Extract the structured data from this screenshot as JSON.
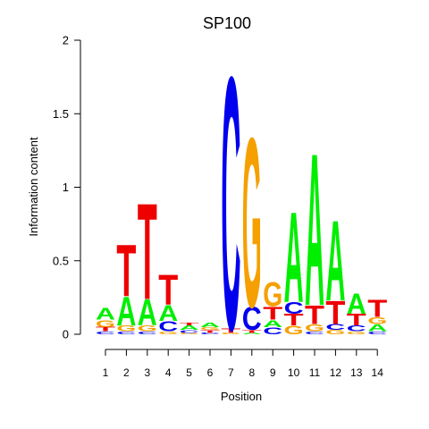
{
  "chart_data": {
    "type": "sequence-logo",
    "title": "SP100",
    "xlabel": "Position",
    "ylabel": "Information content",
    "ylim": [
      0,
      2
    ],
    "yticks": [
      "0",
      "0.5",
      "1",
      "1.5",
      "2"
    ],
    "ytick_values": [
      0,
      0.5,
      1,
      1.5,
      2
    ],
    "positions": [
      "1",
      "2",
      "3",
      "4",
      "5",
      "6",
      "7",
      "8",
      "9",
      "10",
      "11",
      "12",
      "13",
      "14"
    ],
    "colors": {
      "A": "#00ee00",
      "C": "#0000ee",
      "G": "#f5a000",
      "T": "#ee0000"
    },
    "columns": [
      [
        [
          "C",
          0.02
        ],
        [
          "T",
          0.03
        ],
        [
          "G",
          0.05
        ],
        [
          "A",
          0.08
        ]
      ],
      [
        [
          "C",
          0.02
        ],
        [
          "G",
          0.04
        ],
        [
          "A",
          0.2
        ],
        [
          "T",
          0.36
        ]
      ],
      [
        [
          "C",
          0.02
        ],
        [
          "G",
          0.04
        ],
        [
          "A",
          0.18
        ],
        [
          "T",
          0.67
        ]
      ],
      [
        [
          "G",
          0.02
        ],
        [
          "C",
          0.07
        ],
        [
          "A",
          0.11
        ],
        [
          "T",
          0.21
        ]
      ],
      [
        [
          "G",
          0.01
        ],
        [
          "C",
          0.02
        ],
        [
          "A",
          0.03
        ],
        [
          "T",
          0.02
        ]
      ],
      [
        [
          "C",
          0.01
        ],
        [
          "T",
          0.02
        ],
        [
          "G",
          0.02
        ],
        [
          "A",
          0.03
        ]
      ],
      [
        [
          "G",
          0.01
        ],
        [
          "T",
          0.03
        ],
        [
          "C",
          1.76
        ]
      ],
      [
        [
          "A",
          0.01
        ],
        [
          "T",
          0.02
        ],
        [
          "C",
          0.16
        ],
        [
          "G",
          1.18
        ]
      ],
      [
        [
          "C",
          0.05
        ],
        [
          "A",
          0.05
        ],
        [
          "T",
          0.09
        ],
        [
          "G",
          0.17
        ]
      ],
      [
        [
          "G",
          0.06
        ],
        [
          "T",
          0.08
        ],
        [
          "C",
          0.08
        ],
        [
          "A",
          0.63
        ]
      ],
      [
        [
          "C",
          0.02
        ],
        [
          "G",
          0.05
        ],
        [
          "T",
          0.13
        ],
        [
          "A",
          1.06
        ]
      ],
      [
        [
          "G",
          0.03
        ],
        [
          "C",
          0.04
        ],
        [
          "T",
          0.16
        ],
        [
          "A",
          0.56
        ]
      ],
      [
        [
          "G",
          0.02
        ],
        [
          "C",
          0.04
        ],
        [
          "T",
          0.08
        ],
        [
          "A",
          0.14
        ]
      ],
      [
        [
          "C",
          0.02
        ],
        [
          "A",
          0.05
        ],
        [
          "G",
          0.05
        ],
        [
          "T",
          0.12
        ]
      ]
    ]
  }
}
